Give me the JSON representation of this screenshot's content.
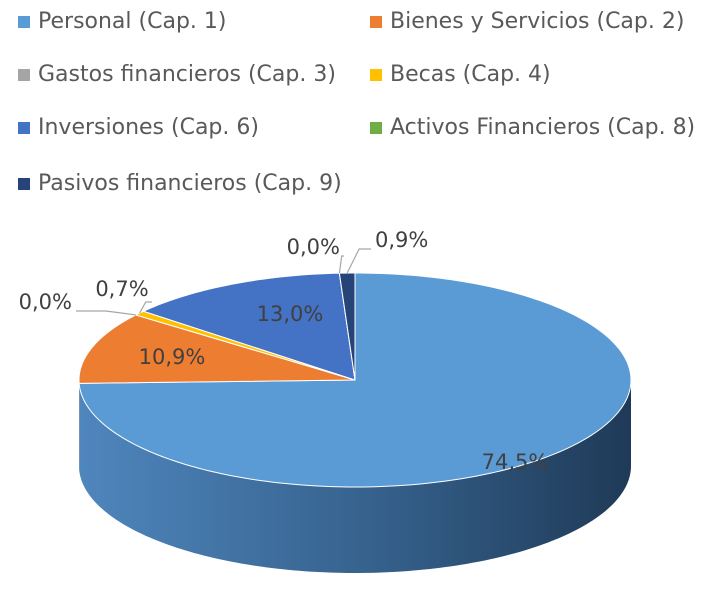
{
  "chart_data": {
    "type": "pie",
    "three_d": true,
    "categories": [
      "Personal (Cap. 1)",
      "Bienes y Servicios (Cap. 2)",
      "Gastos financieros (Cap. 3)",
      "Becas (Cap. 4)",
      "Inversiones (Cap. 6)",
      "Activos Financieros (Cap. 8)",
      "Pasivos financieros (Cap. 9)"
    ],
    "values": [
      74.5,
      10.9,
      0.0,
      0.7,
      13.0,
      0.0,
      0.9
    ],
    "value_labels": [
      "74,5%",
      "10,9%",
      "0,0%",
      "0,7%",
      "13,0%",
      "0,0%",
      "0,9%"
    ],
    "colors": [
      "#5b9bd5",
      "#ed7d31",
      "#a5a5a5",
      "#ffc000",
      "#4472c4",
      "#70ad47",
      "#264478"
    ],
    "legend": "top"
  }
}
